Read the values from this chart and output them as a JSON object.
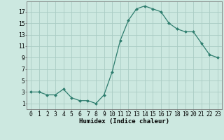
{
  "x": [
    0,
    1,
    2,
    3,
    4,
    5,
    6,
    7,
    8,
    9,
    10,
    11,
    12,
    13,
    14,
    15,
    16,
    17,
    18,
    19,
    20,
    21,
    22,
    23
  ],
  "y": [
    3,
    3,
    2.5,
    2.5,
    3.5,
    2,
    1.5,
    1.5,
    1,
    2.5,
    6.5,
    12,
    15.5,
    17.5,
    18,
    17.5,
    17,
    15,
    14,
    13.5,
    13.5,
    11.5,
    9.5,
    9
  ],
  "line_color": "#2e7d6e",
  "marker": "D",
  "marker_size": 2.0,
  "bg_color": "#cce8e0",
  "grid_color": "#aaccc4",
  "xlabel": "Humidex (Indice chaleur)",
  "xlabel_fontsize": 6.5,
  "ylabel_ticks": [
    1,
    3,
    5,
    7,
    9,
    11,
    13,
    15,
    17
  ],
  "xlim": [
    -0.5,
    23.5
  ],
  "ylim": [
    0.0,
    18.8
  ],
  "tick_fontsize": 5.8,
  "linewidth": 0.9
}
